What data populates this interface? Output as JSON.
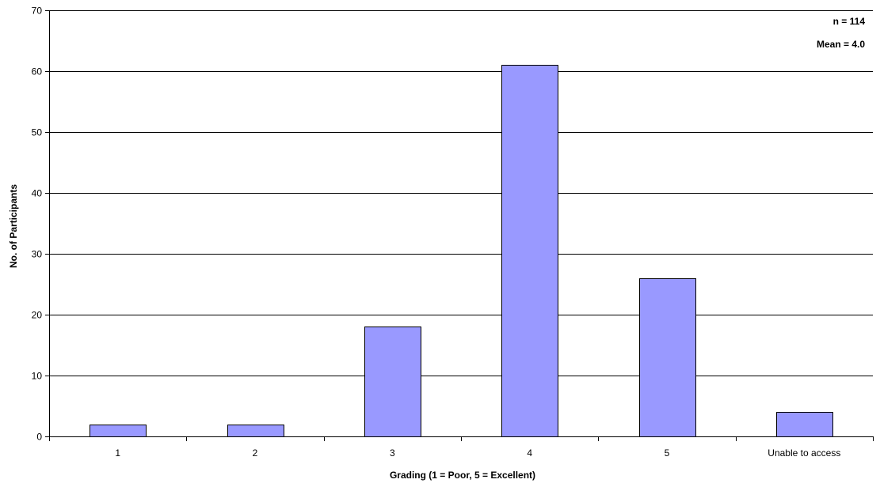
{
  "chart_data": {
    "type": "bar",
    "title": "",
    "xlabel": "Grading (1 = Poor, 5 = Excellent)",
    "ylabel": "No. of Participants",
    "categories": [
      "1",
      "2",
      "3",
      "4",
      "5",
      "Unable to access"
    ],
    "values": [
      2,
      2,
      18,
      61,
      26,
      4
    ],
    "ylim": [
      0,
      70
    ],
    "yticks": [
      0,
      10,
      20,
      30,
      40,
      50,
      60,
      70
    ],
    "grid": true,
    "annotations": [
      "n = 114",
      "Mean = 4.0"
    ],
    "colors": {
      "bar_fill": "#9999ff",
      "bar_stroke": "#000000",
      "grid": "#000000",
      "axis": "#000000"
    }
  }
}
